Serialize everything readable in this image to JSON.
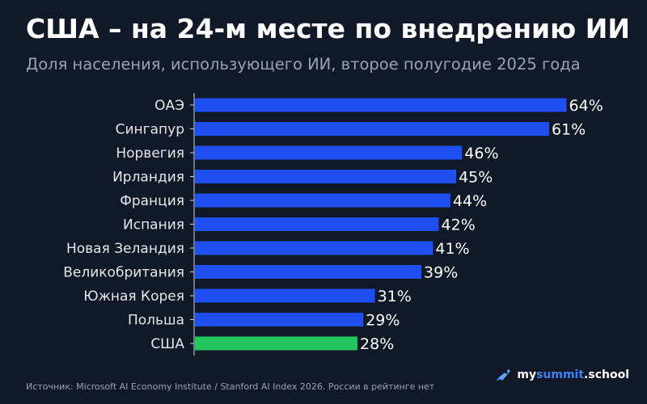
{
  "title": "США – на 24-м месте по внедрению ИИ",
  "subtitle": "Доля населения, использующего ИИ, второе полугодие 2025 года",
  "source": "Источник: Microsoft AI Economy Institute / Stanford AI Index 2026. России в рейтинге нет",
  "brand": {
    "part1": "my",
    "part2": "summit",
    "part3": ".school",
    "icon": "rocket-icon"
  },
  "colors": {
    "background": "#111827",
    "bar": "#1f4ff0",
    "highlight": "#22c55e",
    "axis": "#cbd5e1"
  },
  "chart_data": {
    "type": "bar",
    "orientation": "horizontal",
    "categories": [
      "ОАЭ",
      "Сингапур",
      "Норвегия",
      "Ирландия",
      "Франция",
      "Испания",
      "Новая Зеландия",
      "Великобритания",
      "Южная Корея",
      "Польша",
      "США"
    ],
    "values": [
      64,
      61,
      46,
      45,
      44,
      42,
      41,
      39,
      31,
      29,
      28
    ],
    "value_labels": [
      "64%",
      "61%",
      "46%",
      "45%",
      "44%",
      "42%",
      "41%",
      "39%",
      "31%",
      "29%",
      "28%"
    ],
    "highlight": "США",
    "xlim": [
      0,
      100
    ],
    "grid": false,
    "legend": "none"
  }
}
